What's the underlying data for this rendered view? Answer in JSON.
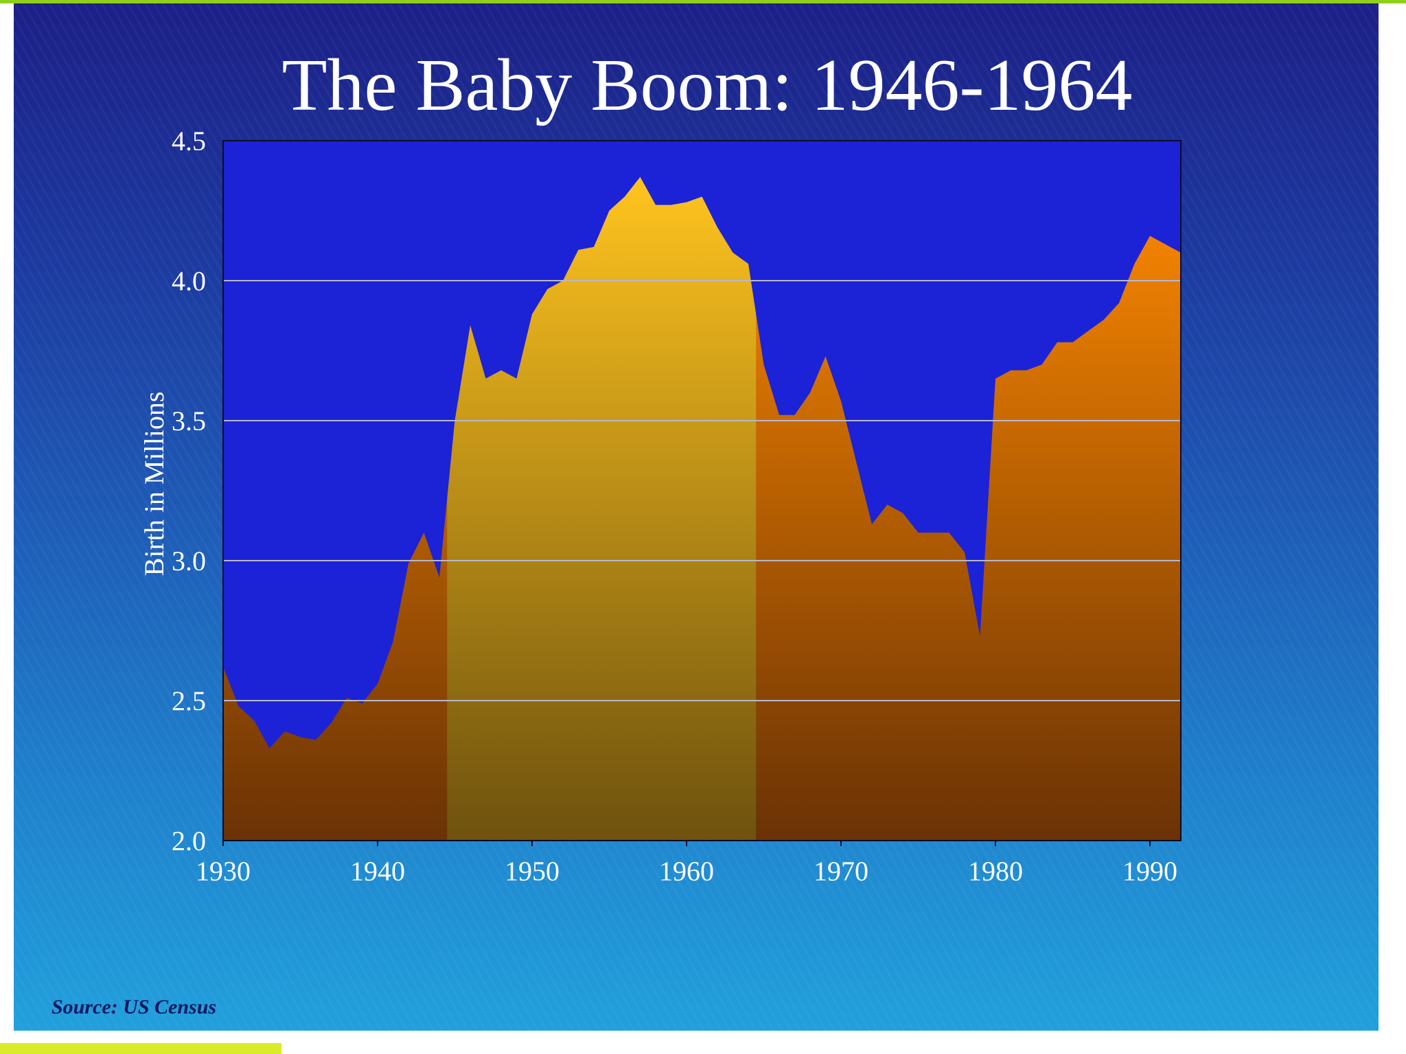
{
  "source": "Source: US Census",
  "colors": {
    "plot_background": "#1c22d6",
    "area_top": "#ff8a00",
    "area_bottom": "#6a3205",
    "boom_top": "#ffc41f",
    "boom_bottom": "#6e520e",
    "gridline": "#b8b8c8"
  },
  "chart_data": {
    "type": "area",
    "title": "The Baby Boom: 1946-1964",
    "xlabel": "",
    "ylabel": "Birth in Millions",
    "xlim": [
      1930,
      1992
    ],
    "ylim": [
      2.0,
      4.5
    ],
    "x_ticks": [
      "1930",
      "1940",
      "1950",
      "1960",
      "1970",
      "1980",
      "1990"
    ],
    "y_ticks": [
      "2.0",
      "2.5",
      "3.0",
      "3.5",
      "4.0",
      "4.5"
    ],
    "grid": "horizontal",
    "highlight_range": [
      1944.5,
      1964.5
    ],
    "x": [
      1930,
      1931,
      1932,
      1933,
      1934,
      1935,
      1936,
      1937,
      1938,
      1939,
      1940,
      1941,
      1942,
      1943,
      1944,
      1945,
      1946,
      1947,
      1948,
      1949,
      1950,
      1951,
      1952,
      1953,
      1954,
      1955,
      1956,
      1957,
      1958,
      1959,
      1960,
      1961,
      1962,
      1963,
      1964,
      1965,
      1966,
      1967,
      1968,
      1969,
      1970,
      1971,
      1972,
      1973,
      1974,
      1975,
      1976,
      1977,
      1978,
      1979,
      1980,
      1981,
      1982,
      1983,
      1984,
      1985,
      1986,
      1987,
      1988,
      1989,
      1990,
      1991,
      1992
    ],
    "values": [
      2.62,
      2.48,
      2.43,
      2.33,
      2.39,
      2.37,
      2.36,
      2.42,
      2.51,
      2.49,
      2.56,
      2.71,
      2.99,
      3.1,
      2.94,
      3.5,
      3.84,
      3.65,
      3.68,
      3.65,
      3.88,
      3.97,
      4.0,
      4.11,
      4.12,
      4.25,
      4.3,
      4.37,
      4.27,
      4.27,
      4.28,
      4.3,
      4.19,
      4.1,
      4.06,
      3.7,
      3.52,
      3.52,
      3.6,
      3.73,
      3.57,
      3.35,
      3.13,
      3.2,
      3.17,
      3.1,
      3.1,
      3.1,
      3.03,
      2.73,
      3.65,
      3.68,
      3.68,
      3.7,
      3.78,
      3.78,
      3.82,
      3.86,
      3.92,
      4.06,
      4.16,
      4.13,
      4.1
    ]
  }
}
